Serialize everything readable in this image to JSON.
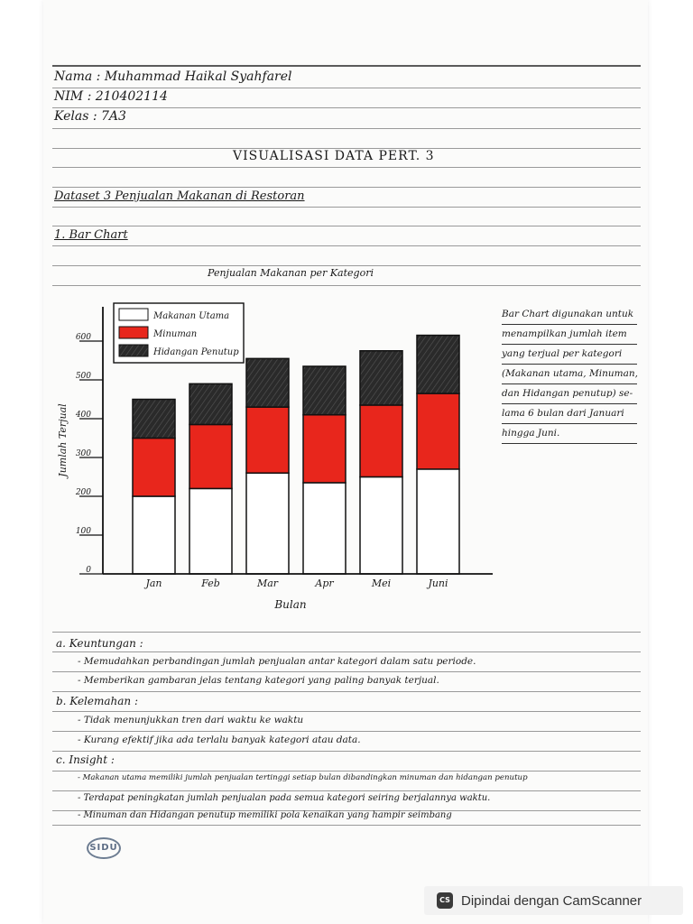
{
  "header": {
    "nama": "Nama : Muhammad Haikal Syahfarel",
    "nim": "NIM : 210402114",
    "kelas": "Kelas : 7A3"
  },
  "doc_title": "VISUALISASI DATA PERT. 3",
  "dataset": "Dataset 3 Penjualan Makanan di Restoran",
  "section": "1. Bar Chart",
  "chart_data": {
    "type": "bar",
    "stacked": true,
    "title": "Penjualan Makanan per Kategori",
    "xlabel": "Bulan",
    "ylabel": "Jumlah Terjual",
    "categories": [
      "Jan",
      "Feb",
      "Mar",
      "Apr",
      "Mei",
      "Juni"
    ],
    "series": [
      {
        "name": "Makanan Utama",
        "color": "#ffffff",
        "values": [
          200,
          220,
          260,
          235,
          250,
          270
        ]
      },
      {
        "name": "Minuman",
        "color": "#e8261c",
        "values": [
          150,
          165,
          170,
          175,
          185,
          195
        ]
      },
      {
        "name": "Hidangan Penutup",
        "color": "#333333",
        "values": [
          100,
          105,
          125,
          125,
          140,
          150
        ]
      }
    ],
    "yticks": [
      "0",
      "100",
      "200",
      "300",
      "400",
      "500",
      "600"
    ],
    "ylim": [
      0,
      600
    ],
    "legend_position": "top-left",
    "grid": false
  },
  "note": [
    "Bar Chart digunakan untuk",
    "menampilkan jumlah item",
    "yang terjual per kategori",
    "(Makanan utama, Minuman,",
    "dan Hidangan penutup) se-",
    "lama 6 bulan dari Januari",
    "hingga Juni."
  ],
  "sections": {
    "keuntungan_title": "a. Keuntungan :",
    "keuntungan": [
      "- Memudahkan perbandingan jumlah penjualan antar kategori dalam satu periode.",
      "- Memberikan gambaran jelas tentang kategori yang paling banyak terjual."
    ],
    "kelemahan_title": "b. Kelemahan :",
    "kelemahan": [
      "- Tidak menunjukkan tren dari waktu ke waktu",
      "- Kurang efektif jika ada terlalu banyak kategori atau data."
    ],
    "insight_title": "c. Insight :",
    "insight": [
      "- Makanan utama memiliki jumlah penjualan tertinggi setiap bulan dibandingkan minuman dan hidangan penutup",
      "- Terdapat peningkatan jumlah penjualan pada semua kategori seiring berjalannya waktu.",
      "- Minuman dan Hidangan penutup memiliki pola kenaikan yang hampir seimbang"
    ]
  },
  "stamp": "SIDU",
  "scanner": {
    "logo": "CS",
    "text": "Dipindai dengan CamScanner"
  }
}
